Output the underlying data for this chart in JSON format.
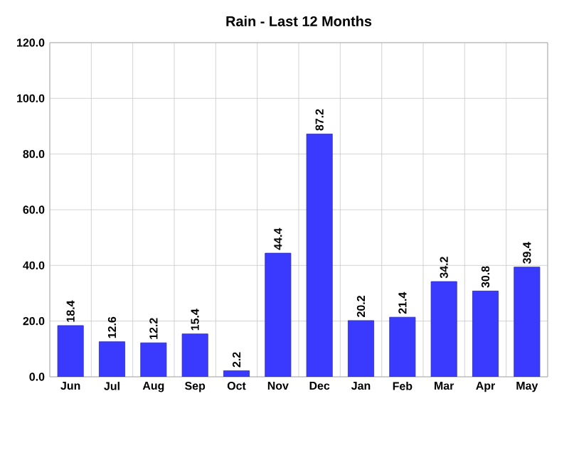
{
  "chart_data": {
    "type": "bar",
    "title": "Rain - Last 12 Months",
    "categories": [
      "Jun",
      "Jul",
      "Aug",
      "Sep",
      "Oct",
      "Nov",
      "Dec",
      "Jan",
      "Feb",
      "Mar",
      "Apr",
      "May"
    ],
    "values": [
      18.4,
      12.6,
      12.2,
      15.4,
      2.2,
      44.4,
      87.2,
      20.2,
      21.4,
      34.2,
      30.8,
      39.4
    ],
    "color": "#3a3aff",
    "ylim": [
      0,
      120
    ],
    "yticks": [
      {
        "value": 0,
        "label": "0.0"
      },
      {
        "value": 20,
        "label": "20.0"
      },
      {
        "value": 40,
        "label": "40.0"
      },
      {
        "value": 60,
        "label": "60.0"
      },
      {
        "value": 80,
        "label": "80.0"
      },
      {
        "value": 100,
        "label": "100.0"
      },
      {
        "value": 120,
        "label": "120.0"
      }
    ],
    "grid": true,
    "data_labels": true
  }
}
